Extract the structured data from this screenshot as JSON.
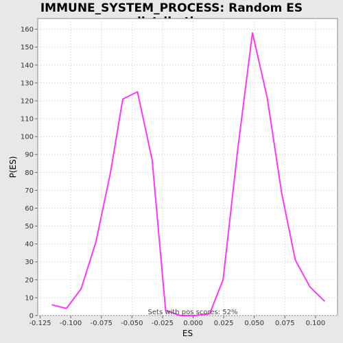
{
  "chart_data": {
    "type": "line",
    "title": "IMMUNE_SYSTEM_PROCESS: Random ES distribution",
    "xlabel": "ES",
    "ylabel": "P(ES)",
    "xlim": [
      -0.127,
      0.118
    ],
    "ylim": [
      0,
      166
    ],
    "x_ticks": [
      -0.125,
      -0.1,
      -0.075,
      -0.05,
      -0.025,
      0.0,
      0.025,
      0.05,
      0.075,
      0.1
    ],
    "x_tick_labels": [
      "-0.125",
      "-0.100",
      "-0.075",
      "-0.050",
      "-0.025",
      "0.000",
      "0.025",
      "0.050",
      "0.075",
      "0.100"
    ],
    "y_ticks": [
      0,
      10,
      20,
      30,
      40,
      50,
      60,
      70,
      80,
      90,
      100,
      110,
      120,
      130,
      140,
      150,
      160
    ],
    "grid": true,
    "series": [
      {
        "color": "#ff33ff",
        "points": [
          [
            -0.1155,
            6
          ],
          [
            -0.1035,
            4
          ],
          [
            -0.0915,
            15
          ],
          [
            -0.0795,
            41
          ],
          [
            -0.0675,
            80
          ],
          [
            -0.0575,
            121
          ],
          [
            -0.0455,
            125
          ],
          [
            -0.0335,
            87
          ],
          [
            -0.0225,
            3
          ],
          [
            -0.0105,
            0
          ],
          [
            0.0015,
            0
          ],
          [
            0.0135,
            1
          ],
          [
            0.0245,
            20
          ],
          [
            0.0365,
            93
          ],
          [
            0.0485,
            158
          ],
          [
            0.0605,
            122
          ],
          [
            0.0725,
            68
          ],
          [
            0.0835,
            31
          ],
          [
            0.0955,
            16
          ],
          [
            0.1075,
            8
          ]
        ]
      }
    ],
    "annotation": "Sets with pos scores: 52%"
  }
}
